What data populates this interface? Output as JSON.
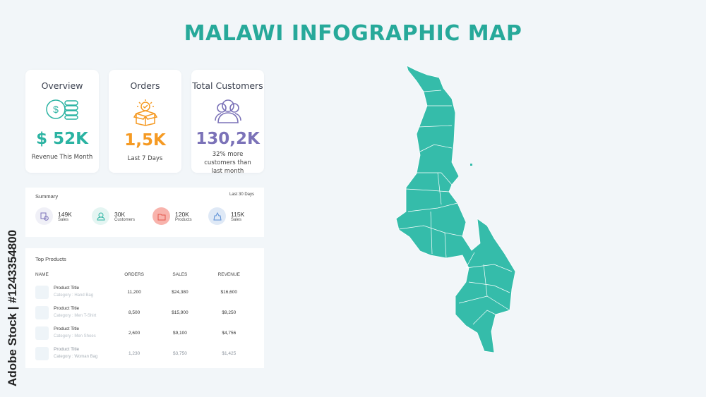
{
  "title": "MALAWI INFOGRAPHIC MAP",
  "colors": {
    "accent": "#27a99a",
    "orange": "#f59a23",
    "purple": "#7b72b8",
    "map": "#35bcaa"
  },
  "cards": [
    {
      "title": "Overview",
      "icon": "dollar-coins-icon",
      "value": "$ 52K",
      "sub": "Revenue This Month",
      "color": "#2bb3a2"
    },
    {
      "title": "Orders",
      "icon": "box-icon",
      "value": "1,5K",
      "sub": "Last 7 Days",
      "color": "#f59a23"
    },
    {
      "title": "Total Customers",
      "icon": "users-icon",
      "value": "130,2K",
      "sub": "32% more customers than last month",
      "color": "#7b72b8"
    }
  ],
  "summary": {
    "title": "Summary",
    "period": "Last 30 Days",
    "items": [
      {
        "value": "149K",
        "label": "Sales",
        "icon": "sales-icon"
      },
      {
        "value": "30K",
        "label": "Customers",
        "icon": "customer-icon"
      },
      {
        "value": "120K",
        "label": "Products",
        "icon": "folder-icon"
      },
      {
        "value": "115K",
        "label": "Sales",
        "icon": "bag-icon"
      }
    ]
  },
  "top_products": {
    "title": "Top Products",
    "columns": [
      "NAME",
      "ORDERS",
      "SALES",
      "REVENUE"
    ],
    "rows": [
      {
        "name": "Product Title",
        "category": "Category : Hand Bag",
        "orders": "11,200",
        "sales": "$24,380",
        "revenue": "$16,600"
      },
      {
        "name": "Product Title",
        "category": "Category : Men T-Shirt",
        "orders": "8,500",
        "sales": "$15,900",
        "revenue": "$9,250"
      },
      {
        "name": "Product Title",
        "category": "Category : Men Shoes",
        "orders": "2,600",
        "sales": "$9,100",
        "revenue": "$4,756"
      },
      {
        "name": "Product Title",
        "category": "Category : Woman Bag",
        "orders": "1,230",
        "sales": "$3,750",
        "revenue": "$1,425"
      }
    ]
  },
  "watermark": "Adobe Stock | #1243354800"
}
